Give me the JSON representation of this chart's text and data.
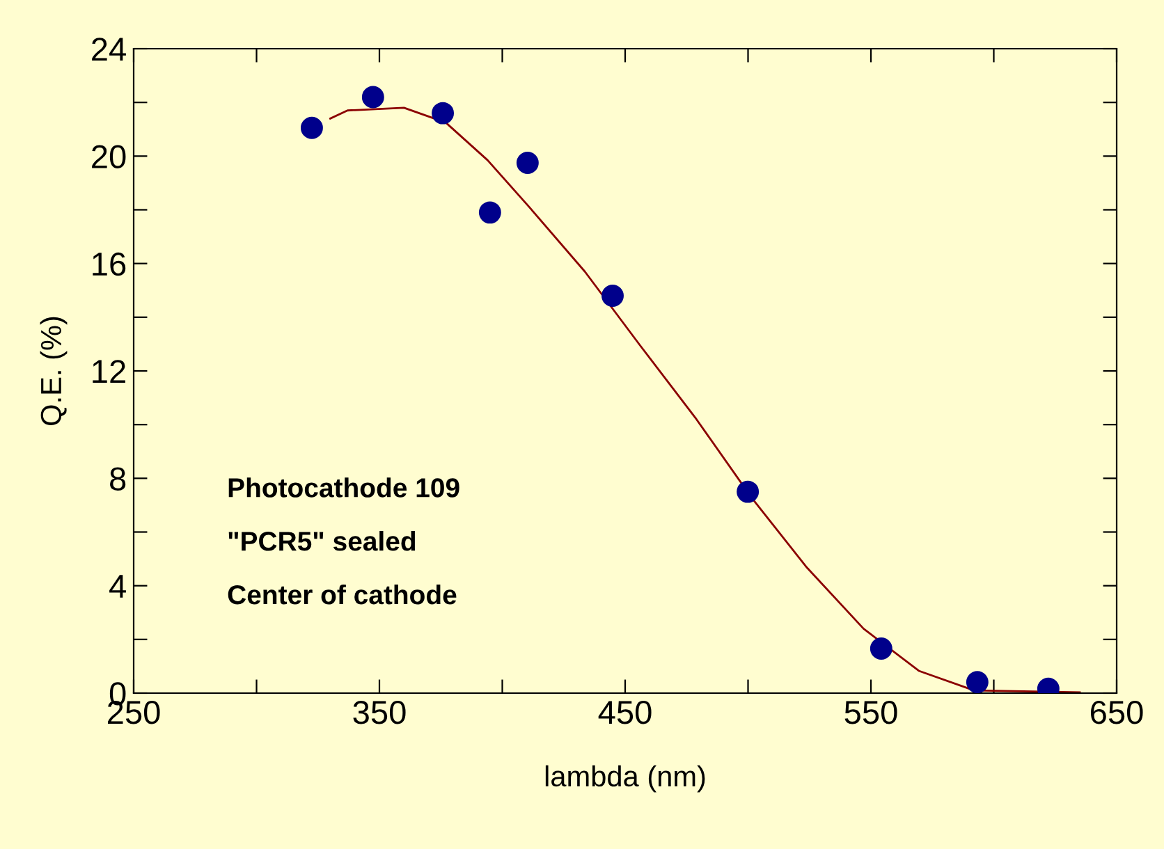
{
  "chart_data": {
    "type": "scatter",
    "xlabel": "lambda (nm)",
    "ylabel": "Q.E. (%)",
    "xlim": [
      250,
      650
    ],
    "ylim": [
      0,
      24
    ],
    "xticks": [
      250,
      {
        "value": 300,
        "label": null
      },
      350,
      {
        "value": 400,
        "label": null
      },
      450,
      {
        "value": 500,
        "label": null
      },
      550,
      {
        "value": 600,
        "label": null
      },
      650
    ],
    "yticks": [
      0,
      {
        "value": 2,
        "label": null
      },
      4,
      {
        "value": 6,
        "label": null
      },
      8,
      {
        "value": 10,
        "label": null
      },
      12,
      {
        "value": 14,
        "label": null
      },
      16,
      {
        "value": 18,
        "label": null
      },
      20,
      {
        "value": 22,
        "label": null
      },
      24
    ],
    "grid": false,
    "series": [
      {
        "marker": "circle",
        "color": "#00008b",
        "x": [
          322.5,
          347.4,
          375.8,
          395,
          410.3,
          444.9,
          499.9,
          554.2,
          593.3,
          622.2
        ],
        "values": [
          21.05,
          22.2,
          21.6,
          17.9,
          19.75,
          14.8,
          7.5,
          1.66,
          0.41,
          0.16
        ]
      },
      {
        "type": "line",
        "color": "#8b0000",
        "x": [
          330,
          337,
          360,
          377,
          394,
          411,
          433.6,
          456,
          479,
          501.6,
          524,
          547,
          569.5,
          592,
          635
        ],
        "values": [
          21.4,
          21.7,
          21.8,
          21.25,
          19.85,
          18.1,
          15.7,
          12.96,
          10.2,
          7.26,
          4.67,
          2.4,
          0.83,
          0.1,
          0.03
        ]
      }
    ],
    "annotations": [
      "Photocathode 109",
      "\"PCR5\" sealed",
      "Center of cathode"
    ]
  }
}
